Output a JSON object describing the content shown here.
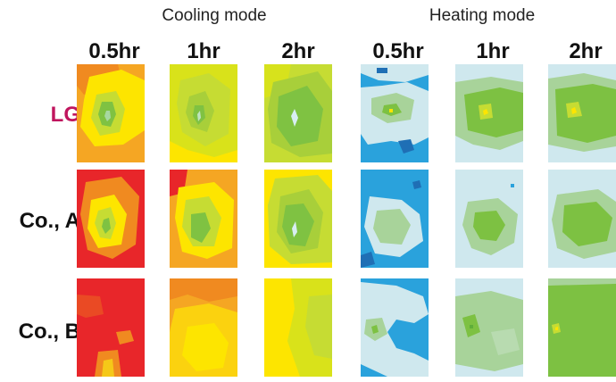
{
  "modes": {
    "cooling": "Cooling mode",
    "heating": "Heating mode"
  },
  "times": [
    "0.5hr",
    "1hr",
    "2hr",
    "0.5hr",
    "1hr",
    "2hr"
  ],
  "rows": [
    "LG",
    "Co., A",
    "Co., B"
  ],
  "colors": {
    "lg_label": "#c0155e",
    "cool_red": "#e8262a",
    "cool_orange": "#f08a20",
    "cool_yellow": "#fde500",
    "cool_yellowgreen": "#c6dc33",
    "cool_green": "#7fc242",
    "heat_blue": "#2aa2dc",
    "heat_light": "#cfe8ee",
    "heat_palegreen": "#a8d39a",
    "heat_green": "#7dc142"
  }
}
